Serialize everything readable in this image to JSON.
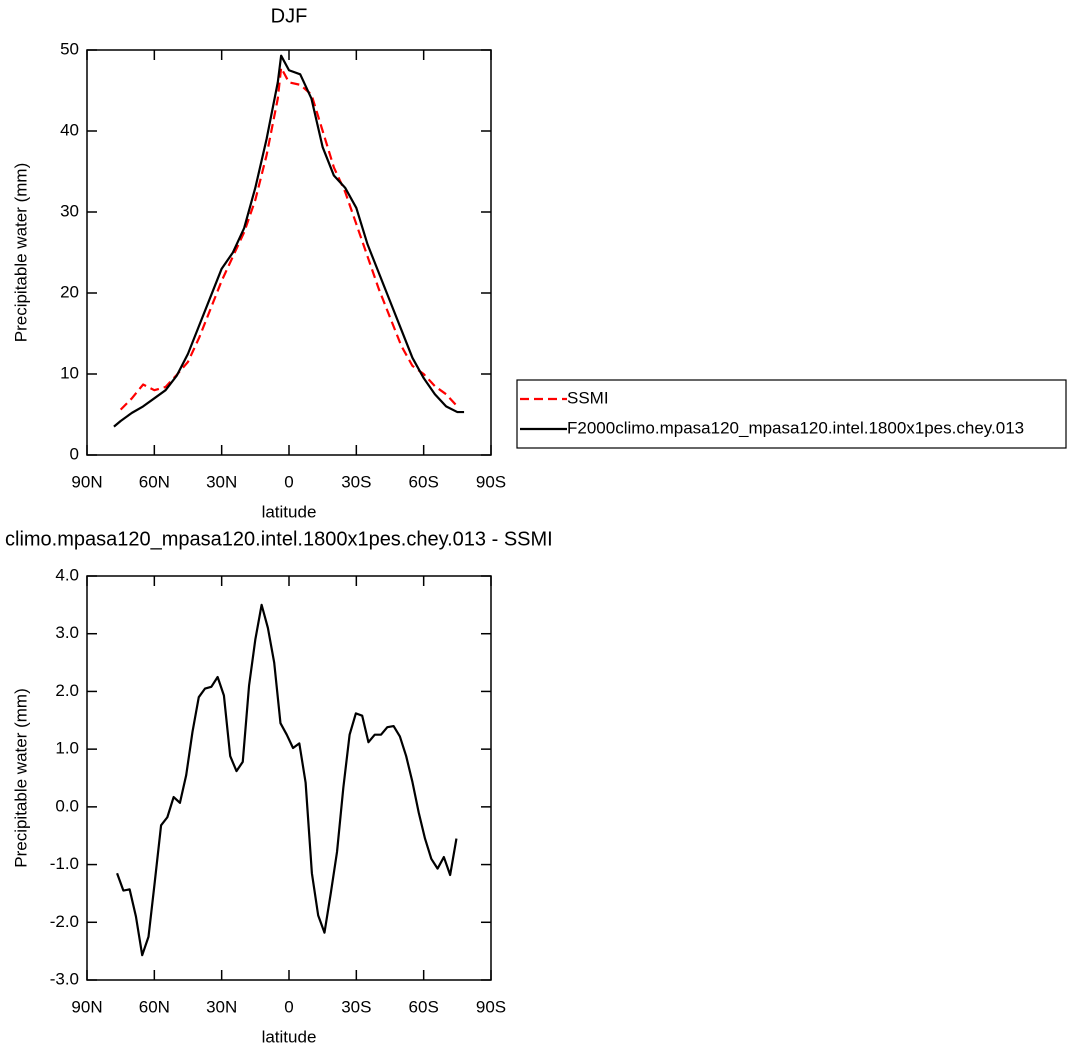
{
  "chart_data": [
    {
      "type": "line",
      "title": "DJF",
      "xlabel": "latitude",
      "ylabel": "Precipitable water (mm)",
      "x": [
        78,
        75,
        70,
        65,
        60,
        55,
        50,
        45,
        40,
        35,
        30,
        25,
        20,
        15,
        10,
        5,
        3.5,
        0,
        -5,
        -10,
        -15,
        -20,
        -25,
        -30,
        -35,
        -40,
        -45,
        -50,
        -55,
        -60,
        -65,
        -70,
        -75,
        -78
      ],
      "series": [
        {
          "name": "SSMI",
          "color": "#ff0000",
          "line_style": "dashed",
          "values": [
            null,
            5.6,
            7,
            8.7,
            8,
            8.4,
            9.9,
            11.5,
            14.5,
            18,
            21.5,
            24.5,
            27.5,
            31.5,
            37,
            44,
            47.8,
            46,
            45.7,
            44.5,
            40,
            35.5,
            32.5,
            28.5,
            24.5,
            20.5,
            17,
            13.5,
            11,
            10,
            8.5,
            7.5,
            6,
            null
          ]
        },
        {
          "name": "F2000climo.mpasa120_mpasa120.intel.1800x1pes.chey.013",
          "color": "#000000",
          "line_style": "solid",
          "values": [
            3.5,
            4.2,
            5.2,
            6,
            7,
            8,
            9.8,
            12.5,
            16,
            19.5,
            23,
            25,
            28,
            33,
            39,
            46,
            49.3,
            47.5,
            47,
            44,
            38,
            34.5,
            33,
            30.5,
            26,
            22.5,
            19,
            15.5,
            12,
            9.5,
            7.5,
            6,
            5.3,
            5.3
          ]
        }
      ],
      "xlim": [
        90,
        -90
      ],
      "xticks": [
        {
          "value": 90,
          "label": "90N"
        },
        {
          "value": 60,
          "label": "60N"
        },
        {
          "value": 30,
          "label": "30N"
        },
        0,
        {
          "value": -30,
          "label": "30S"
        },
        {
          "value": -60,
          "label": "60S"
        },
        {
          "value": -90,
          "label": "90S"
        }
      ],
      "ylim": [
        0,
        50
      ],
      "yticks": [
        0,
        10,
        20,
        30,
        40,
        50
      ]
    },
    {
      "type": "line",
      "title": "climo.mpasa120_mpasa120.intel.1800x1pes.chey.013 - SSMI",
      "xlabel": "latitude",
      "ylabel": "Precipitable water (mm)",
      "x": [
        76.6,
        73.8,
        71.0,
        68.2,
        65.4,
        62.6,
        59.8,
        57.0,
        54.2,
        51.4,
        48.6,
        45.8,
        43.0,
        40.2,
        37.4,
        34.6,
        31.8,
        29.0,
        26.2,
        23.4,
        20.6,
        17.8,
        15.0,
        12.2,
        9.4,
        6.6,
        3.8,
        1.0,
        -1.8,
        -4.6,
        -7.4,
        -10.2,
        -13.0,
        -15.8,
        -18.6,
        -21.4,
        -24.2,
        -27.0,
        -29.8,
        -32.6,
        -35.4,
        -38.2,
        -41.0,
        -43.8,
        -46.6,
        -49.4,
        -52.2,
        -55.0,
        -57.8,
        -60.6,
        -63.4,
        -66.2,
        -69.0,
        -71.8,
        -74.6
      ],
      "series": [
        {
          "color": "#000000",
          "line_style": "solid",
          "values": [
            -1.15,
            -1.45,
            -1.43,
            -1.9,
            -2.57,
            -2.25,
            -1.3,
            -0.32,
            -0.18,
            0.17,
            0.07,
            0.55,
            1.3,
            1.9,
            2.05,
            2.08,
            2.25,
            1.93,
            0.88,
            0.62,
            0.78,
            2.1,
            2.9,
            3.5,
            3.1,
            2.5,
            1.45,
            1.25,
            1.02,
            1.1,
            0.42,
            -1.15,
            -1.88,
            -2.18,
            -1.5,
            -0.78,
            0.33,
            1.25,
            1.62,
            1.58,
            1.12,
            1.25,
            1.25,
            1.38,
            1.4,
            1.22,
            0.88,
            0.43,
            -0.1,
            -0.55,
            -0.9,
            -1.07,
            -0.87,
            -1.18,
            -0.55
          ]
        }
      ],
      "xlim": [
        90,
        -90
      ],
      "xticks": [
        {
          "value": 90,
          "label": "90N"
        },
        {
          "value": 60,
          "label": "60N"
        },
        {
          "value": 30,
          "label": "30N"
        },
        0,
        {
          "value": -30,
          "label": "30S"
        },
        {
          "value": -60,
          "label": "60S"
        },
        {
          "value": -90,
          "label": "90S"
        }
      ],
      "ylim": [
        -3,
        4
      ],
      "yticks": [
        {
          "value": -3,
          "label": "-3.0"
        },
        {
          "value": -2,
          "label": "-2.0"
        },
        {
          "value": -1,
          "label": "-1.0"
        },
        {
          "value": 0,
          "label": "0.0"
        },
        {
          "value": 1,
          "label": "1.0"
        },
        {
          "value": 2,
          "label": "2.0"
        },
        {
          "value": 3,
          "label": "3.0"
        },
        {
          "value": 4,
          "label": "4.0"
        }
      ]
    }
  ]
}
